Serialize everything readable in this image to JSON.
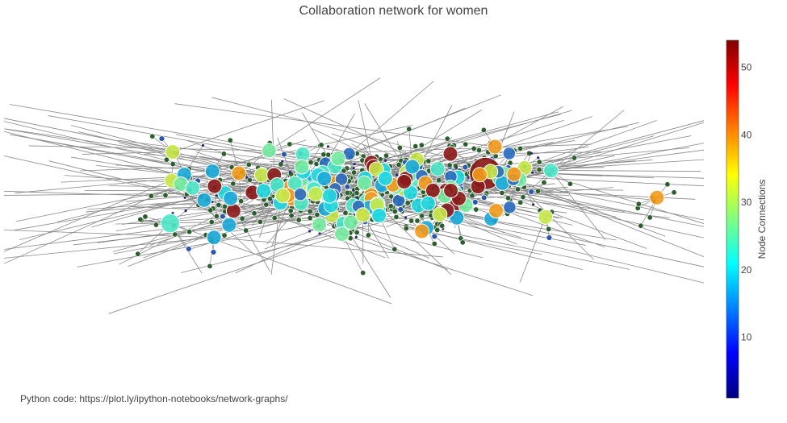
{
  "chart_data": {
    "type": "network",
    "title": "Collaboration network for women",
    "colorbar": {
      "title": "Node Connections",
      "range": [
        1,
        54
      ],
      "ticks": [
        10,
        20,
        30,
        40,
        50
      ],
      "colorscale": [
        "#000080",
        "#0000ff",
        "#0080ff",
        "#00ffff",
        "#80ff80",
        "#ffff00",
        "#ff8000",
        "#ff0000",
        "#800000"
      ]
    },
    "highlighted_nodes": [
      {
        "connections": 54,
        "color": "#8b1a1a"
      },
      {
        "connections": 42,
        "color": "#f29a1b"
      },
      {
        "connections": 31,
        "color": "#c8e84a"
      },
      {
        "connections": 28,
        "color": "#74eaa0"
      },
      {
        "connections": 24,
        "color": "#4ee8c8"
      },
      {
        "connections": 20,
        "color": "#20d8e0"
      },
      {
        "connections": 15,
        "color": "#1aa8d8"
      },
      {
        "connections": 10,
        "color": "#2a6cc0"
      }
    ],
    "grid": false,
    "legend": "colorbar right"
  },
  "footer": "Python code:  https://plot.ly/ipython-notebooks/network-graphs/",
  "colors": {
    "edge": "#888888",
    "leaf_node": "#2d5e2d",
    "small_node": "#2f57a8",
    "tiny_node": "#2a2a7a"
  }
}
